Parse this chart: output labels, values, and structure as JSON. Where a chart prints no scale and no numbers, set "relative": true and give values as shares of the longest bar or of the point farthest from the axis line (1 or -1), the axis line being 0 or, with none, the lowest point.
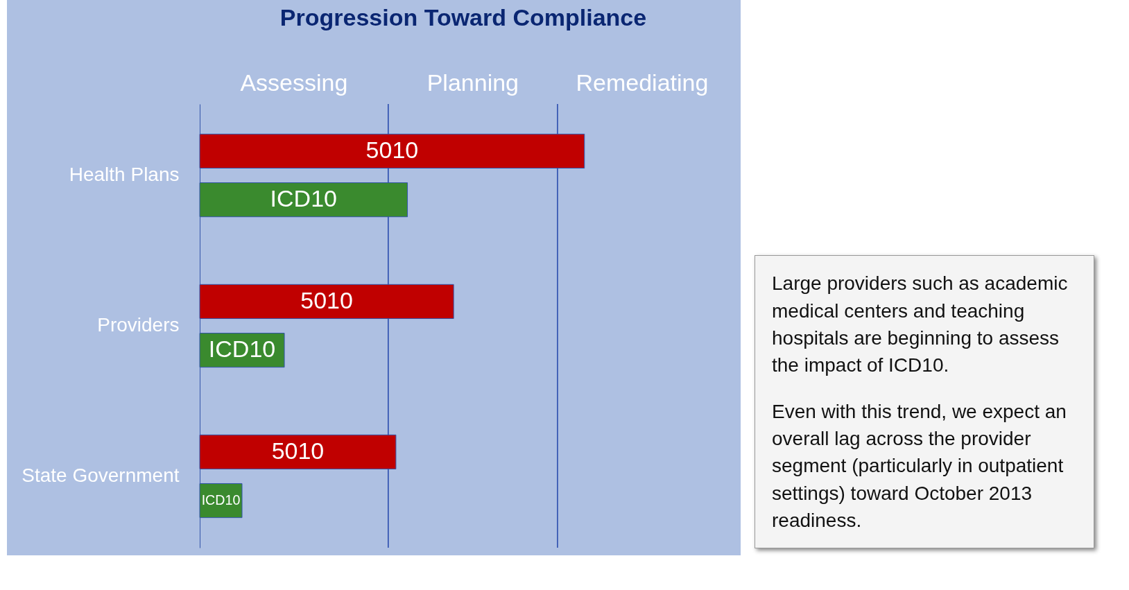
{
  "chart_data": {
    "type": "bar",
    "orientation": "horizontal",
    "relative": true,
    "title": "Progression Toward Compliance",
    "categories": [
      "Health Plans",
      "Providers",
      "State Government"
    ],
    "series": [
      {
        "name": "5010",
        "color": "#c00000",
        "values": [
          1,
          0.66,
          0.51
        ]
      },
      {
        "name": "ICD10",
        "color": "#3a8a2e",
        "values": [
          0.54,
          0.22,
          0.11
        ]
      }
    ],
    "ref_lines": [
      {
        "axis": "x",
        "value": 0.49,
        "color": "#2244aa"
      },
      {
        "axis": "x",
        "value": 0.93,
        "color": "#2244aa"
      }
    ],
    "legend": false,
    "annotations": [
      "Assessing",
      "Planning",
      "Remediating",
      "Large providers such as academic medical centers and teaching hospitals are beginning to assess the impact of ICD10.",
      "Even with this trend, we expect an overall lag across the provider segment (particularly in outpatient settings) toward October 2013 readiness."
    ]
  }
}
